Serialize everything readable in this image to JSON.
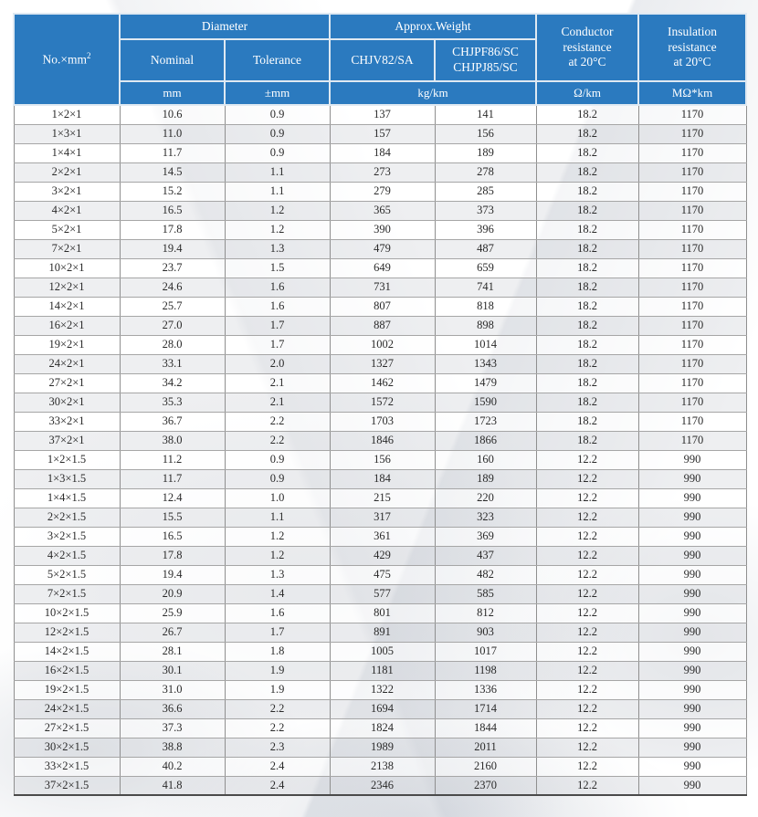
{
  "colors": {
    "header_bg": "#2b7abf",
    "header_text": "#ffffff",
    "row_alt_bg": "#eef0f2",
    "grid_line": "#8f8f8f"
  },
  "table": {
    "header": {
      "spec_label": "No.×mm",
      "spec_sup": "2",
      "diameter_group": "Diameter",
      "weight_group": "Approx.Weight",
      "nominal": "Nominal",
      "tolerance": "Tolerance",
      "chjv": "CHJV82/SA",
      "chjpf": "CHJPF86/SC\nCHJPJ85/SC",
      "conductor_resistance": "Conductor\nresistance\nat 20°C",
      "insulation_resistance": "Insulation\nresistance\nat 20°C",
      "unit_mm": "mm",
      "unit_tolerance": "±mm",
      "unit_weight": "kg/km",
      "unit_conductor": "Ω/km",
      "unit_insulation": "MΩ*km"
    },
    "rows": [
      [
        "1×2×1",
        "10.6",
        "0.9",
        "137",
        "141",
        "18.2",
        "1170"
      ],
      [
        "1×3×1",
        "11.0",
        "0.9",
        "157",
        "156",
        "18.2",
        "1170"
      ],
      [
        "1×4×1",
        "11.7",
        "0.9",
        "184",
        "189",
        "18.2",
        "1170"
      ],
      [
        "2×2×1",
        "14.5",
        "1.1",
        "273",
        "278",
        "18.2",
        "1170"
      ],
      [
        "3×2×1",
        "15.2",
        "1.1",
        "279",
        "285",
        "18.2",
        "1170"
      ],
      [
        "4×2×1",
        "16.5",
        "1.2",
        "365",
        "373",
        "18.2",
        "1170"
      ],
      [
        "5×2×1",
        "17.8",
        "1.2",
        "390",
        "396",
        "18.2",
        "1170"
      ],
      [
        "7×2×1",
        "19.4",
        "1.3",
        "479",
        "487",
        "18.2",
        "1170"
      ],
      [
        "10×2×1",
        "23.7",
        "1.5",
        "649",
        "659",
        "18.2",
        "1170"
      ],
      [
        "12×2×1",
        "24.6",
        "1.6",
        "731",
        "741",
        "18.2",
        "1170"
      ],
      [
        "14×2×1",
        "25.7",
        "1.6",
        "807",
        "818",
        "18.2",
        "1170"
      ],
      [
        "16×2×1",
        "27.0",
        "1.7",
        "887",
        "898",
        "18.2",
        "1170"
      ],
      [
        "19×2×1",
        "28.0",
        "1.7",
        "1002",
        "1014",
        "18.2",
        "1170"
      ],
      [
        "24×2×1",
        "33.1",
        "2.0",
        "1327",
        "1343",
        "18.2",
        "1170"
      ],
      [
        "27×2×1",
        "34.2",
        "2.1",
        "1462",
        "1479",
        "18.2",
        "1170"
      ],
      [
        "30×2×1",
        "35.3",
        "2.1",
        "1572",
        "1590",
        "18.2",
        "1170"
      ],
      [
        "33×2×1",
        "36.7",
        "2.2",
        "1703",
        "1723",
        "18.2",
        "1170"
      ],
      [
        "37×2×1",
        "38.0",
        "2.2",
        "1846",
        "1866",
        "18.2",
        "1170"
      ],
      [
        "1×2×1.5",
        "11.2",
        "0.9",
        "156",
        "160",
        "12.2",
        "990"
      ],
      [
        "1×3×1.5",
        "11.7",
        "0.9",
        "184",
        "189",
        "12.2",
        "990"
      ],
      [
        "1×4×1.5",
        "12.4",
        "1.0",
        "215",
        "220",
        "12.2",
        "990"
      ],
      [
        "2×2×1.5",
        "15.5",
        "1.1",
        "317",
        "323",
        "12.2",
        "990"
      ],
      [
        "3×2×1.5",
        "16.5",
        "1.2",
        "361",
        "369",
        "12.2",
        "990"
      ],
      [
        "4×2×1.5",
        "17.8",
        "1.2",
        "429",
        "437",
        "12.2",
        "990"
      ],
      [
        "5×2×1.5",
        "19.4",
        "1.3",
        "475",
        "482",
        "12.2",
        "990"
      ],
      [
        "7×2×1.5",
        "20.9",
        "1.4",
        "577",
        "585",
        "12.2",
        "990"
      ],
      [
        "10×2×1.5",
        "25.9",
        "1.6",
        "801",
        "812",
        "12.2",
        "990"
      ],
      [
        "12×2×1.5",
        "26.7",
        "1.7",
        "891",
        "903",
        "12.2",
        "990"
      ],
      [
        "14×2×1.5",
        "28.1",
        "1.8",
        "1005",
        "1017",
        "12.2",
        "990"
      ],
      [
        "16×2×1.5",
        "30.1",
        "1.9",
        "1181",
        "1198",
        "12.2",
        "990"
      ],
      [
        "19×2×1.5",
        "31.0",
        "1.9",
        "1322",
        "1336",
        "12.2",
        "990"
      ],
      [
        "24×2×1.5",
        "36.6",
        "2.2",
        "1694",
        "1714",
        "12.2",
        "990"
      ],
      [
        "27×2×1.5",
        "37.3",
        "2.2",
        "1824",
        "1844",
        "12.2",
        "990"
      ],
      [
        "30×2×1.5",
        "38.8",
        "2.3",
        "1989",
        "2011",
        "12.2",
        "990"
      ],
      [
        "33×2×1.5",
        "40.2",
        "2.4",
        "2138",
        "2160",
        "12.2",
        "990"
      ],
      [
        "37×2×1.5",
        "41.8",
        "2.4",
        "2346",
        "2370",
        "12.2",
        "990"
      ]
    ]
  }
}
